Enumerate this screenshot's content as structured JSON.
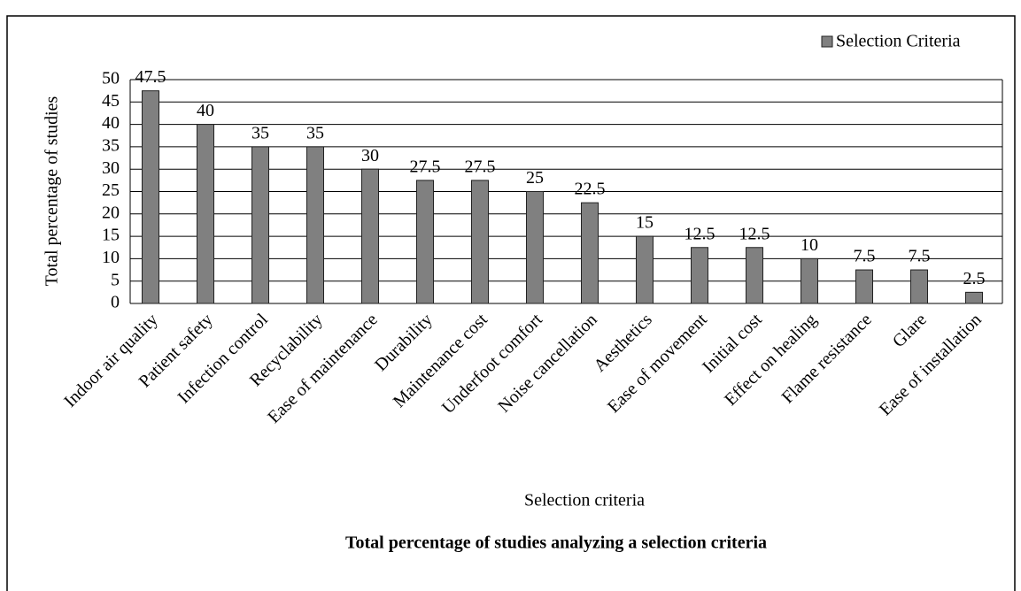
{
  "chart_data": {
    "type": "bar",
    "caption": "Total percentage of studies analyzing a selection criteria",
    "x_label": "Selection criteria",
    "y_label": "Total percentage of studies",
    "categories": [
      "Indoor air quality",
      "Patient safety",
      "Infection control",
      "Recyclability",
      "Ease of maintenance",
      "Durability",
      "Maintenance cost",
      "Underfoot comfort",
      "Noise cancellation",
      "Aesthetics",
      "Ease of movement",
      "Initial cost",
      "Effect on healing",
      "Flame resistance",
      "Glare",
      "Ease of installation"
    ],
    "series": [
      {
        "name": "Selection Criteria",
        "color": "#808080",
        "values": [
          47.5,
          40,
          35,
          35,
          30,
          27.5,
          27.5,
          25,
          22.5,
          15,
          12.5,
          12.5,
          10,
          7.5,
          7.5,
          2.5
        ]
      }
    ],
    "ylim": [
      0,
      50
    ],
    "yticks": [
      0,
      5,
      10,
      15,
      20,
      25,
      30,
      35,
      40,
      45,
      50
    ],
    "grid": true,
    "legend": "top-right"
  }
}
